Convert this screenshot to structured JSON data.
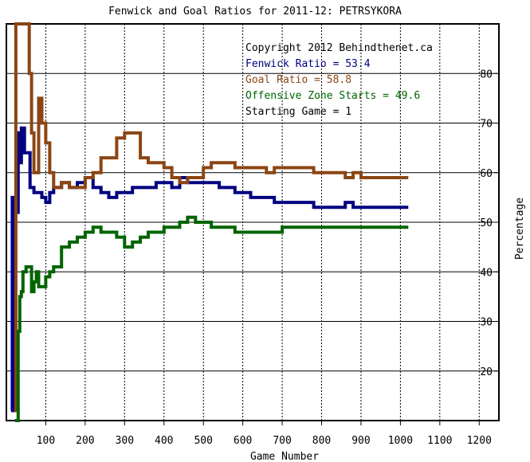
{
  "chart_data": {
    "type": "line",
    "title": "Fenwick and Goal Ratios for 2011-12: PETRSYKORA",
    "xlabel": "Game Number",
    "ylabel": "Percentage",
    "xlim": [
      0,
      1250
    ],
    "ylim": [
      10,
      90
    ],
    "x_ticks": [
      100,
      200,
      300,
      400,
      500,
      600,
      700,
      800,
      900,
      1000,
      1100,
      1200
    ],
    "y_ticks": [
      20,
      30,
      40,
      50,
      60,
      70,
      80
    ],
    "grid": true,
    "legend_position": "top-right",
    "legend": [
      {
        "text": "Copyright 2012 Behindthenet.ca",
        "color": "#000000"
      },
      {
        "text": "Fenwick Ratio = 53.4",
        "color": "#000080"
      },
      {
        "text": "Goal Ratio = 58.8",
        "color": "#8b4513"
      },
      {
        "text": "Offensive Zone Starts = 49.6",
        "color": "#006400"
      },
      {
        "text": "Starting Game = 1",
        "color": "#000000"
      }
    ],
    "series": [
      {
        "name": "Fenwick Ratio",
        "color": "#000080",
        "x": [
          12,
          15,
          18,
          22,
          26,
          30,
          34,
          38,
          42,
          46,
          50,
          55,
          60,
          70,
          80,
          90,
          100,
          110,
          120,
          140,
          160,
          180,
          200,
          220,
          240,
          260,
          280,
          300,
          320,
          340,
          360,
          380,
          400,
          420,
          440,
          460,
          480,
          500,
          520,
          540,
          560,
          580,
          600,
          620,
          640,
          660,
          680,
          700,
          720,
          740,
          760,
          780,
          800,
          820,
          840,
          860,
          880,
          900,
          920,
          940,
          960,
          980,
          1000,
          1020
        ],
        "y": [
          12,
          55,
          12,
          55,
          52,
          68,
          62,
          69,
          69,
          64,
          64,
          64,
          57,
          56,
          56,
          55,
          54,
          56,
          57,
          58,
          57,
          58,
          59,
          57,
          56,
          55,
          56,
          56,
          57,
          57,
          57,
          58,
          58,
          57,
          59,
          58,
          58,
          58,
          58,
          57,
          57,
          56,
          56,
          55,
          55,
          55,
          54,
          54,
          54,
          54,
          54,
          53,
          53,
          53,
          53,
          54,
          53,
          53,
          53,
          53,
          53,
          53,
          53,
          53
        ]
      },
      {
        "name": "Goal Ratio",
        "color": "#8b4513",
        "x": [
          20,
          24,
          28,
          32,
          36,
          40,
          46,
          52,
          58,
          64,
          70,
          76,
          82,
          90,
          100,
          110,
          120,
          140,
          160,
          180,
          200,
          220,
          240,
          260,
          280,
          300,
          320,
          340,
          360,
          380,
          400,
          420,
          440,
          460,
          480,
          500,
          520,
          540,
          560,
          580,
          600,
          620,
          640,
          660,
          680,
          700,
          720,
          740,
          760,
          780,
          800,
          820,
          840,
          860,
          880,
          900,
          920,
          940,
          960,
          980,
          1000,
          1020
        ],
        "y": [
          12,
          90,
          90,
          90,
          90,
          90,
          90,
          90,
          80,
          68,
          60,
          60,
          75,
          70,
          66,
          60,
          57,
          58,
          57,
          57,
          59,
          60,
          63,
          63,
          67,
          68,
          68,
          63,
          62,
          62,
          61,
          59,
          58,
          59,
          59,
          61,
          62,
          62,
          62,
          61,
          61,
          61,
          61,
          60,
          61,
          61,
          61,
          61,
          61,
          60,
          60,
          60,
          60,
          59,
          60,
          59,
          59,
          59,
          59,
          59,
          59,
          59
        ]
      },
      {
        "name": "Offensive Zone Starts",
        "color": "#006400",
        "x": [
          22,
          26,
          30,
          34,
          38,
          42,
          50,
          58,
          64,
          70,
          76,
          82,
          90,
          100,
          110,
          120,
          140,
          160,
          180,
          200,
          220,
          240,
          260,
          280,
          300,
          320,
          340,
          360,
          380,
          400,
          420,
          440,
          460,
          480,
          500,
          520,
          540,
          560,
          580,
          600,
          620,
          640,
          660,
          680,
          700,
          720,
          740,
          760,
          780,
          800,
          820,
          840,
          860,
          880,
          900,
          920,
          940,
          960,
          980,
          1000,
          1020
        ],
        "y": [
          10,
          10,
          28,
          35,
          36,
          40,
          41,
          41,
          36,
          38,
          40,
          37,
          37,
          39,
          40,
          41,
          45,
          46,
          47,
          48,
          49,
          48,
          48,
          47,
          45,
          46,
          47,
          48,
          48,
          49,
          49,
          50,
          51,
          50,
          50,
          49,
          49,
          49,
          48,
          48,
          48,
          48,
          48,
          48,
          49,
          49,
          49,
          49,
          49,
          49,
          49,
          49,
          49,
          49,
          49,
          49,
          49,
          49,
          49,
          49,
          49
        ]
      }
    ]
  }
}
